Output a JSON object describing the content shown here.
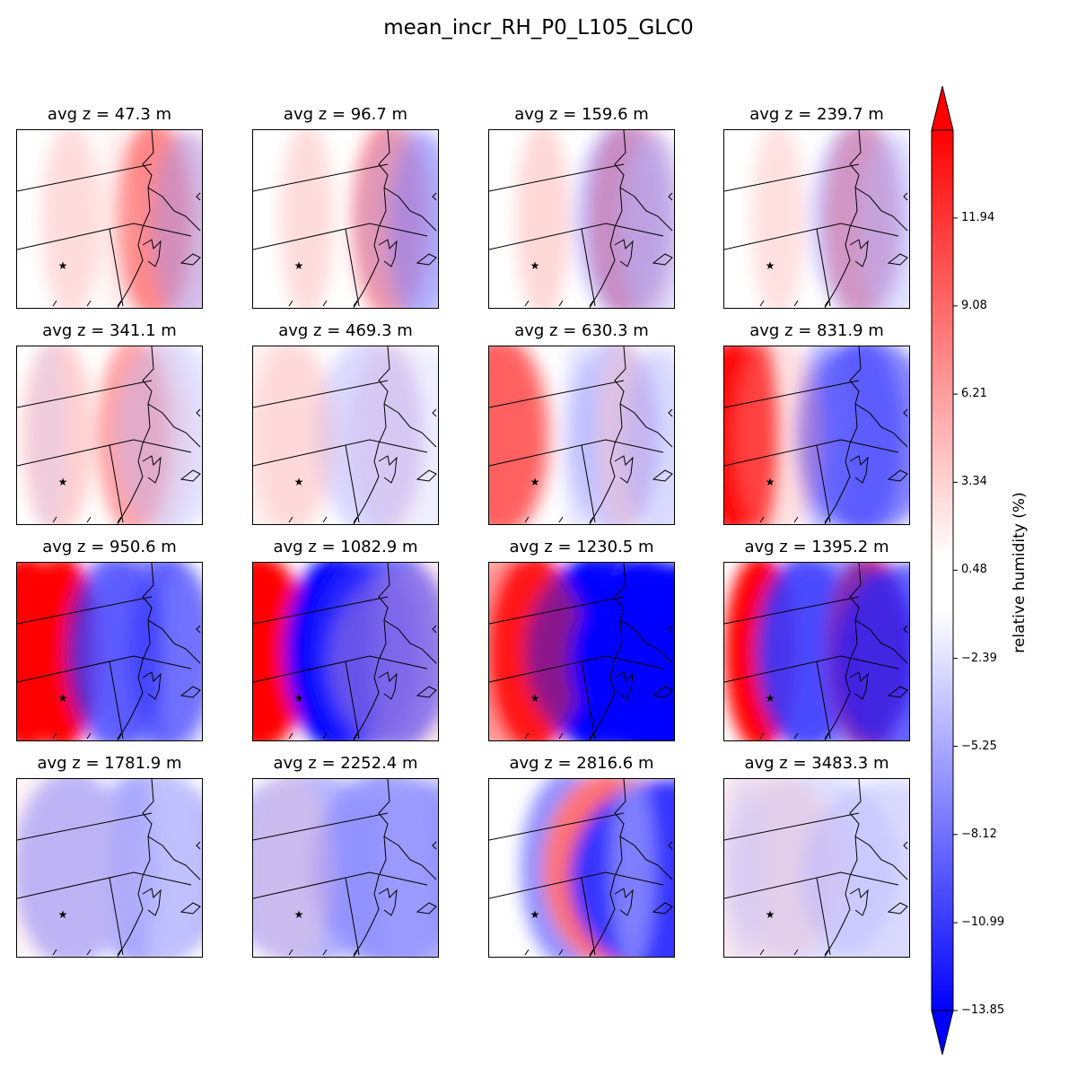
{
  "title": "mean_incr_RH_P0_L105_GLC0",
  "colorbar": {
    "label": "relative humidity (%)",
    "ticks": [
      "11.94",
      "9.08",
      "6.21",
      "3.34",
      "0.48",
      "−2.39",
      "−5.25",
      "−8.12",
      "−10.99",
      "−13.85"
    ],
    "tick_values": [
      11.94,
      9.08,
      6.21,
      3.34,
      0.48,
      -2.39,
      -5.25,
      -8.12,
      -10.99,
      -13.85
    ],
    "range": [
      -13.85,
      14.8
    ],
    "extend": "both",
    "colors": {
      "low": "#0000ff",
      "mid": "#ffffff",
      "high": "#ff0000"
    }
  },
  "chart_data": {
    "type": "heatmap",
    "layout": "4x4 small multiples",
    "panels": [
      {
        "title": "avg z = 47.3 m"
      },
      {
        "title": "avg z = 96.7 m"
      },
      {
        "title": "avg z = 159.6 m"
      },
      {
        "title": "avg z = 239.7 m"
      },
      {
        "title": "avg z = 341.1 m"
      },
      {
        "title": "avg z = 469.3 m"
      },
      {
        "title": "avg z = 630.3 m"
      },
      {
        "title": "avg z = 831.9 m"
      },
      {
        "title": "avg z = 950.6 m"
      },
      {
        "title": "avg z = 1082.9 m"
      },
      {
        "title": "avg z = 1230.5 m"
      },
      {
        "title": "avg z = 1395.2 m"
      },
      {
        "title": "avg z = 1781.9 m"
      },
      {
        "title": "avg z = 2252.4 m"
      },
      {
        "title": "avg z = 2816.6 m"
      },
      {
        "title": "avg z = 3483.3 m"
      }
    ]
  }
}
